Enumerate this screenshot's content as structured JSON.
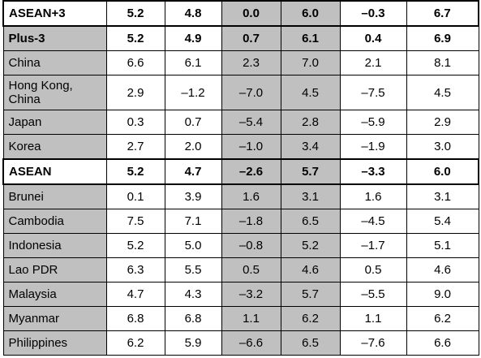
{
  "table": {
    "rows": [
      [
        "ASEAN+3",
        "5.2",
        "4.8",
        "0.0",
        "6.0",
        "–0.3",
        "6.7"
      ],
      [
        "Plus-3",
        "5.2",
        "4.9",
        "0.7",
        "6.1",
        "0.4",
        "6.9"
      ],
      [
        "China",
        "6.6",
        "6.1",
        "2.3",
        "7.0",
        "2.1",
        "8.1"
      ],
      [
        "Hong Kong, China",
        "2.9",
        "–1.2",
        "–7.0",
        "4.5",
        "–7.5",
        "4.5"
      ],
      [
        "Japan",
        "0.3",
        "0.7",
        "–5.4",
        "2.8",
        "–5.9",
        "2.9"
      ],
      [
        "Korea",
        "2.7",
        "2.0",
        "–1.0",
        "3.4",
        "–1.9",
        "3.0"
      ],
      [
        "ASEAN",
        "5.2",
        "4.7",
        "–2.6",
        "5.7",
        "–3.3",
        "6.0"
      ],
      [
        "Brunei",
        "0.1",
        "3.9",
        "1.6",
        "3.1",
        "1.6",
        "3.1"
      ],
      [
        "Cambodia",
        "7.5",
        "7.1",
        "–1.8",
        "6.5",
        "–4.5",
        "5.4"
      ],
      [
        "Indonesia",
        "5.2",
        "5.0",
        "–0.8",
        "5.2",
        "–1.7",
        "5.1"
      ],
      [
        "Lao PDR",
        "6.3",
        "5.5",
        "0.5",
        "4.6",
        "0.5",
        "4.6"
      ],
      [
        "Malaysia",
        "4.7",
        "4.3",
        "–3.2",
        "5.7",
        "–5.5",
        "9.0"
      ],
      [
        "Myanmar",
        "6.8",
        "6.8",
        "1.1",
        "6.2",
        "1.1",
        "6.2"
      ],
      [
        "Philippines",
        "6.2",
        "5.9",
        "–6.6",
        "6.5",
        "–7.6",
        "6.6"
      ]
    ]
  }
}
